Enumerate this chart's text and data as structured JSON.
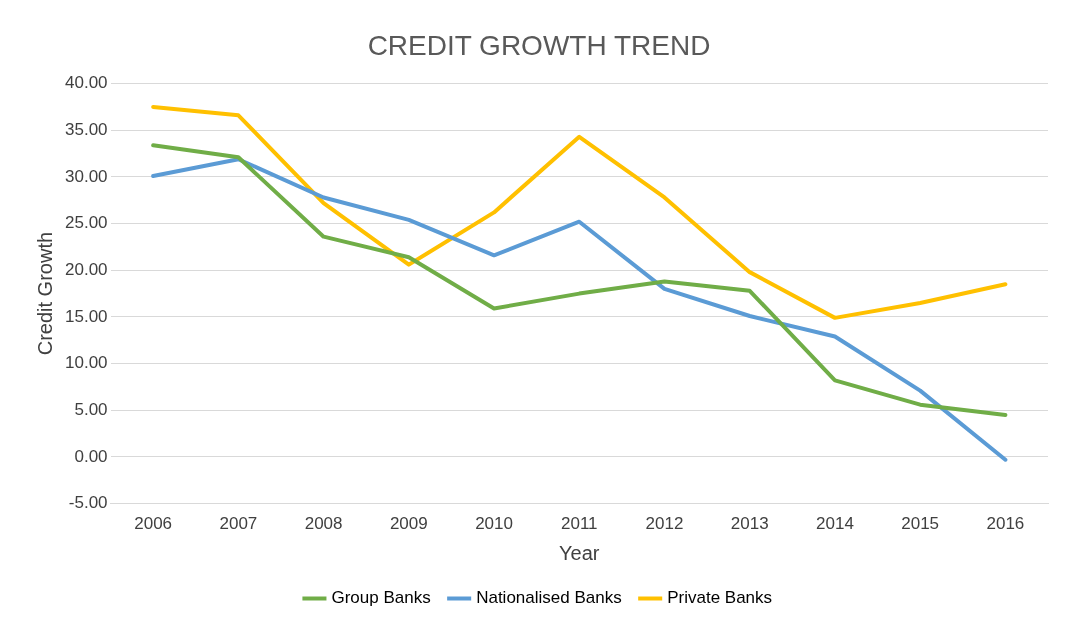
{
  "chart_data": {
    "type": "line",
    "title": "CREDIT GROWTH TREND",
    "xlabel": "Year",
    "ylabel": "Credit Growth",
    "categories": [
      "2006",
      "2007",
      "2008",
      "2009",
      "2010",
      "2011",
      "2012",
      "2013",
      "2014",
      "2015",
      "2016"
    ],
    "series": [
      {
        "name": "Group Banks",
        "color": "#70ad47",
        "values": [
          33.4,
          32.1,
          23.6,
          21.4,
          15.9,
          17.5,
          18.8,
          17.8,
          8.2,
          5.6,
          4.5
        ]
      },
      {
        "name": "Nationalised Banks",
        "color": "#5b9bd5",
        "values": [
          30.1,
          31.9,
          27.8,
          25.4,
          21.6,
          25.2,
          18.0,
          15.1,
          12.9,
          7.1,
          -0.3
        ]
      },
      {
        "name": "Private Banks",
        "color": "#ffc000",
        "values": [
          37.5,
          36.6,
          27.2,
          20.6,
          26.2,
          34.3,
          27.8,
          19.8,
          14.9,
          16.5,
          18.5
        ]
      }
    ],
    "ylim": [
      -5,
      40
    ],
    "yticks": [
      {
        "value": -5,
        "label": "-5.00"
      },
      {
        "value": 0,
        "label": "0.00"
      },
      {
        "value": 5,
        "label": "5.00"
      },
      {
        "value": 10,
        "label": "10.00"
      },
      {
        "value": 15,
        "label": "15.00"
      },
      {
        "value": 20,
        "label": "20.00"
      },
      {
        "value": 25,
        "label": "25.00"
      },
      {
        "value": 30,
        "label": "30.00"
      },
      {
        "value": 35,
        "label": "35.00"
      },
      {
        "value": 40,
        "label": "40.00"
      }
    ],
    "grid": "y",
    "legend": "bottom",
    "marker": "none",
    "line_style": "solid"
  }
}
